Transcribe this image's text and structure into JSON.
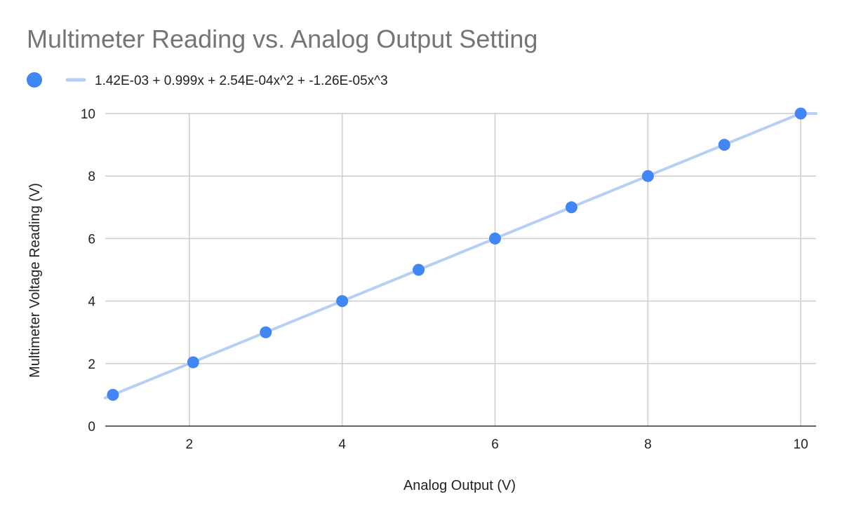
{
  "chart_data": {
    "type": "scatter",
    "title": "Multimeter Reading vs. Analog Output Setting",
    "xlabel": "Analog Output (V)",
    "ylabel": "Multimeter Voltage Reading (V)",
    "xlim": [
      0.9,
      10.2
    ],
    "ylim": [
      0,
      10
    ],
    "x_ticks": [
      2,
      4,
      6,
      8,
      10
    ],
    "y_ticks": [
      0,
      2,
      4,
      6,
      8,
      10
    ],
    "grid": true,
    "legend_position": "top-left",
    "series": [
      {
        "type": "scatter",
        "color": "#4285f4",
        "x": [
          1,
          2.05,
          3,
          4,
          5,
          6,
          7,
          8,
          9,
          10
        ],
        "y": [
          1.0,
          2.04,
          3.0,
          4.0,
          5.0,
          6.0,
          7.0,
          8.0,
          9.0,
          10.0
        ]
      }
    ],
    "trendline": {
      "type": "polynomial",
      "name": "1.42E-03 + 0.999x + 2.54E-04x^2 + -1.26E-05x^3",
      "coefficients": [
        0.00142,
        0.999,
        0.000254,
        -1.26e-05
      ],
      "color": "#b7cff5"
    }
  }
}
